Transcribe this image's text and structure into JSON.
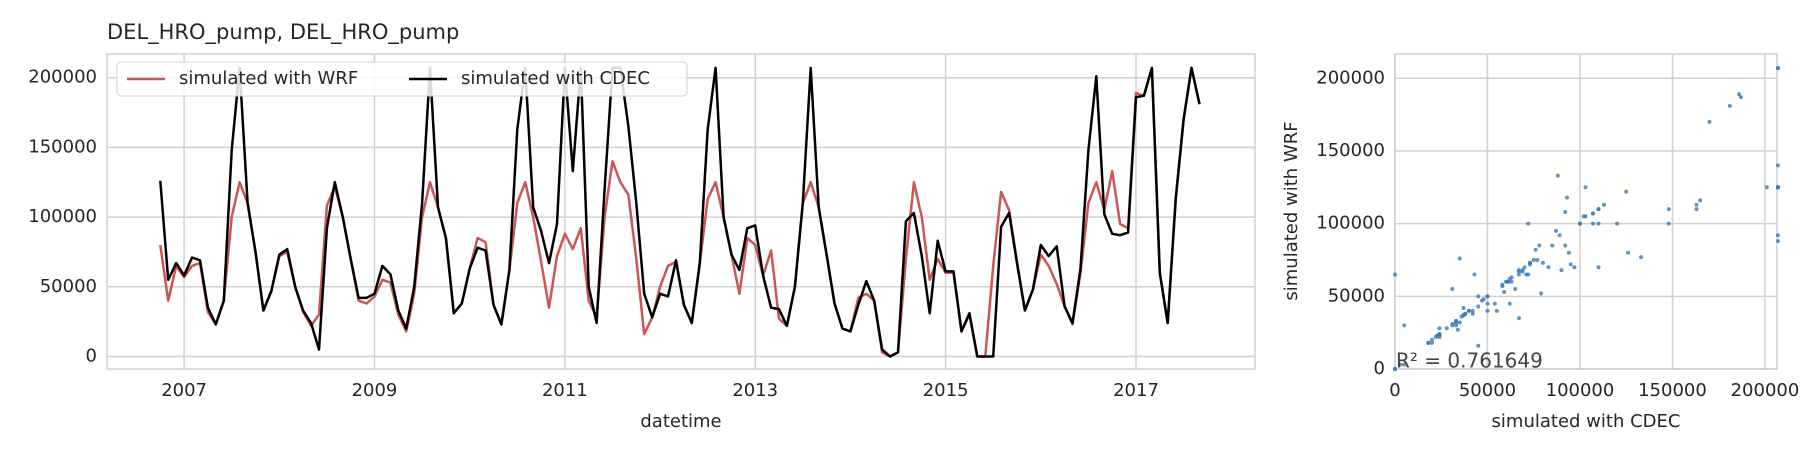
{
  "chart_data": [
    {
      "type": "line",
      "title": "DEL_HRO_pump, DEL_HRO_pump",
      "xlabel": "datetime",
      "x": [
        2006.75,
        2006.833,
        2006.917,
        2007,
        2007.083,
        2007.167,
        2007.25,
        2007.333,
        2007.417,
        2007.5,
        2007.583,
        2007.667,
        2007.75,
        2007.833,
        2007.917,
        2008,
        2008.083,
        2008.167,
        2008.25,
        2008.333,
        2008.417,
        2008.5,
        2008.583,
        2008.667,
        2008.75,
        2008.833,
        2008.917,
        2009,
        2009.083,
        2009.167,
        2009.25,
        2009.333,
        2009.417,
        2009.5,
        2009.583,
        2009.667,
        2009.75,
        2009.833,
        2009.917,
        2010,
        2010.083,
        2010.167,
        2010.25,
        2010.333,
        2010.417,
        2010.5,
        2010.583,
        2010.667,
        2010.75,
        2010.833,
        2010.917,
        2011,
        2011.083,
        2011.167,
        2011.25,
        2011.333,
        2011.417,
        2011.5,
        2011.583,
        2011.667,
        2011.75,
        2011.833,
        2011.917,
        2012,
        2012.083,
        2012.167,
        2012.25,
        2012.333,
        2012.417,
        2012.5,
        2012.583,
        2012.667,
        2012.75,
        2012.833,
        2012.917,
        2013,
        2013.083,
        2013.167,
        2013.25,
        2013.333,
        2013.417,
        2013.5,
        2013.583,
        2013.667,
        2013.75,
        2013.833,
        2013.917,
        2014,
        2014.083,
        2014.167,
        2014.25,
        2014.333,
        2014.417,
        2014.5,
        2014.583,
        2014.667,
        2014.75,
        2014.833,
        2014.917,
        2015,
        2015.083,
        2015.167,
        2015.25,
        2015.333,
        2015.417,
        2015.5,
        2015.583,
        2015.667,
        2015.75,
        2015.833,
        2015.917,
        2016,
        2016.083,
        2016.167,
        2016.25,
        2016.333,
        2016.417,
        2016.5,
        2016.583,
        2016.667,
        2016.75,
        2016.833,
        2016.917,
        2017,
        2017.083,
        2017.167,
        2017.25,
        2017.333,
        2017.417,
        2017.5,
        2017.583,
        2017.667
      ],
      "series": [
        {
          "name": "simulated with WRF",
          "color": "#cc5555",
          "values": [
            80000,
            40000,
            65000,
            57000,
            65000,
            67000,
            32000,
            23000,
            40000,
            100000,
            125000,
            110000,
            75000,
            33000,
            47000,
            72000,
            75000,
            50000,
            32000,
            22000,
            30000,
            108000,
            122000,
            100000,
            70000,
            40000,
            38000,
            43000,
            55000,
            53000,
            30000,
            18000,
            45000,
            100000,
            125000,
            107000,
            85000,
            31000,
            38000,
            63000,
            85000,
            82000,
            37000,
            23000,
            62000,
            110000,
            125000,
            100000,
            68000,
            35000,
            72000,
            88000,
            77000,
            92000,
            40000,
            28000,
            100000,
            140000,
            125000,
            116000,
            70000,
            16000,
            28000,
            50000,
            65000,
            68000,
            37000,
            24000,
            67000,
            113000,
            125000,
            100000,
            73000,
            45000,
            85000,
            80000,
            58000,
            76000,
            27000,
            22000,
            50000,
            110000,
            125000,
            107000,
            73000,
            38000,
            20000,
            18000,
            42000,
            45000,
            40000,
            3000,
            0,
            3000,
            70000,
            125000,
            100000,
            55000,
            70000,
            60000,
            60000,
            18000,
            30000,
            0,
            0,
            65000,
            118000,
            105000,
            68000,
            33000,
            48000,
            73000,
            65000,
            52000,
            36000,
            23000,
            60000,
            110000,
            125000,
            105000,
            133000,
            95000,
            92000,
            189000,
            187000,
            207000,
            60000,
            24000,
            113000,
            170000,
            207000,
            181000
          ]
        },
        {
          "name": "simulated with CDEC",
          "color": "#000000",
          "values": [
            126000,
            55000,
            67000,
            58000,
            71000,
            69000,
            35000,
            23000,
            40000,
            148000,
            207000,
            110000,
            75000,
            33000,
            47000,
            73000,
            77000,
            50000,
            33000,
            24000,
            5000,
            92000,
            125000,
            100000,
            70000,
            42000,
            42000,
            45000,
            65000,
            59000,
            33000,
            20000,
            50000,
            110000,
            207000,
            107000,
            85000,
            31000,
            38000,
            63000,
            78000,
            76000,
            37000,
            23000,
            62000,
            163000,
            207000,
            107000,
            90000,
            67000,
            95000,
            207000,
            133000,
            207000,
            50000,
            24000,
            120000,
            207000,
            207000,
            165000,
            110000,
            45000,
            28000,
            45000,
            43000,
            69000,
            37000,
            24000,
            67000,
            163000,
            207000,
            100000,
            73000,
            62000,
            92000,
            94000,
            58000,
            35000,
            34000,
            22000,
            50000,
            110000,
            207000,
            107000,
            73000,
            38000,
            20000,
            18000,
            37000,
            54000,
            40000,
            5000,
            0,
            3000,
            97000,
            103000,
            72000,
            31000,
            83000,
            61000,
            61000,
            18000,
            31000,
            0,
            0,
            0,
            93000,
            103000,
            67000,
            33000,
            48000,
            80000,
            72000,
            79000,
            36000,
            24000,
            63000,
            148000,
            201000,
            102000,
            88000,
            87000,
            89000,
            186000,
            187000,
            207000,
            60000,
            24000,
            113000,
            170000,
            207000,
            181000
          ]
        }
      ],
      "xlim": [
        2006.19,
        2018.25
      ],
      "xticks": [
        2007,
        2009,
        2011,
        2013,
        2015,
        2017
      ],
      "ylim": [
        -9000,
        217000
      ],
      "yticks": [
        0,
        50000,
        100000,
        150000,
        200000
      ],
      "grid": true,
      "legend": "upper left"
    },
    {
      "type": "scatter",
      "xlabel": "simulated with CDEC",
      "ylabel": "simulated with WRF",
      "annotation": "R² = 0.761649",
      "color": "#3a7ab8",
      "xlim": [
        0,
        206500
      ],
      "xticks": [
        0,
        50000,
        100000,
        150000,
        200000
      ],
      "ylim": [
        0,
        216700
      ],
      "yticks": [
        0,
        50000,
        100000,
        150000,
        200000
      ],
      "grid": true
    }
  ]
}
